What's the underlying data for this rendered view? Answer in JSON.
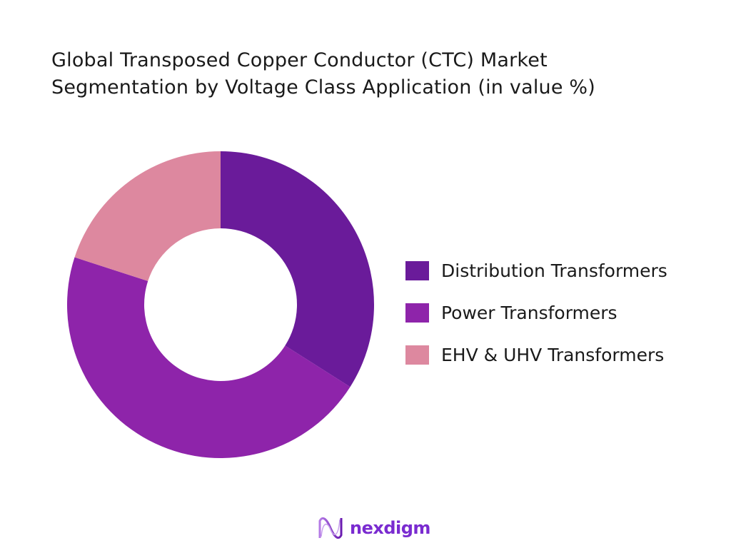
{
  "title_line1": "Global Transposed Copper Conductor (CTC) Market",
  "title_line2": "Segmentation by Voltage Class Application (in value %)",
  "chart_data": {
    "type": "pie",
    "donut": true,
    "title": "Global Transposed Copper Conductor (CTC) Market Segmentation by Voltage Class Application (in value %)",
    "categories": [
      "Distribution Transformers",
      "Power Transformers",
      "EHV & UHV Transformers"
    ],
    "values": [
      34,
      46,
      20
    ],
    "colors": [
      "#6a1b9a",
      "#8e24aa",
      "#dd889f"
    ],
    "legend_position": "right"
  },
  "logo": {
    "text": "nexdigm"
  }
}
